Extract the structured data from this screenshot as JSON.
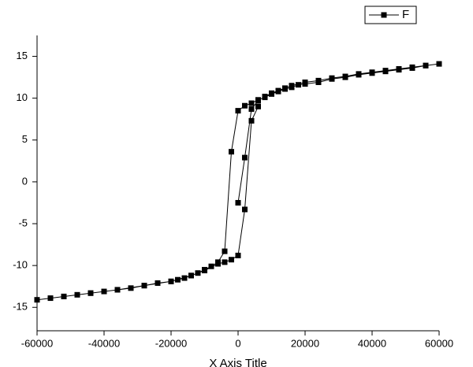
{
  "chart_data": {
    "type": "line",
    "x_label": "X Axis Title",
    "x": [
      0,
      2000,
      4000,
      6000,
      8000,
      10000,
      12000,
      14000,
      16000,
      20000,
      24000,
      28000,
      32000,
      36000,
      40000,
      44000,
      48000,
      52000,
      56000,
      60000,
      56000,
      52000,
      48000,
      44000,
      40000,
      36000,
      32000,
      28000,
      24000,
      20000,
      18000,
      16000,
      14000,
      12000,
      10000,
      8000,
      6000,
      4000,
      2000,
      0,
      -2000,
      -4000,
      -6000,
      -8000,
      -10000,
      -12000,
      -14000,
      -16000,
      -18000,
      -20000,
      -24000,
      -28000,
      -32000,
      -36000,
      -40000,
      -44000,
      -48000,
      -52000,
      -56000,
      -60000,
      -52000,
      -44000,
      -36000,
      -28000,
      -20000,
      -14000,
      -10000,
      -6000,
      -4000,
      -2000,
      0,
      2000,
      4000,
      6000
    ],
    "series": [
      {
        "name": "F",
        "color": "#000000",
        "values": [
          -2.5,
          2.9,
          8.7,
          9.7,
          10.2,
          10.6,
          10.9,
          11.2,
          11.5,
          11.9,
          12.1,
          12.4,
          12.6,
          12.9,
          13.1,
          13.3,
          13.5,
          13.7,
          13.9,
          14.1,
          13.9,
          13.6,
          13.4,
          13.2,
          13.0,
          12.8,
          12.5,
          12.3,
          11.9,
          11.7,
          11.6,
          11.3,
          11.1,
          10.8,
          10.5,
          10.1,
          9.8,
          9.4,
          9.1,
          8.5,
          3.6,
          -8.3,
          -9.6,
          -10.1,
          -10.5,
          -10.9,
          -11.2,
          -11.5,
          -11.7,
          -11.9,
          -12.1,
          -12.4,
          -12.7,
          -12.9,
          -13.1,
          -13.3,
          -13.5,
          -13.7,
          -13.9,
          -14.1,
          -13.7,
          -13.3,
          -12.9,
          -12.4,
          -11.9,
          -11.2,
          -10.6,
          -9.8,
          -9.6,
          -9.3,
          -8.8,
          -3.3,
          7.3,
          9.0
        ]
      }
    ],
    "xlim": [
      -60000,
      60000
    ],
    "ylim": [
      -17.8,
      17.5
    ],
    "xticks": [
      -60000,
      -40000,
      -20000,
      0,
      20000,
      40000,
      60000
    ],
    "yticks": [
      -15,
      -10,
      -5,
      0,
      5,
      10,
      15
    ],
    "legend": "top-right"
  }
}
